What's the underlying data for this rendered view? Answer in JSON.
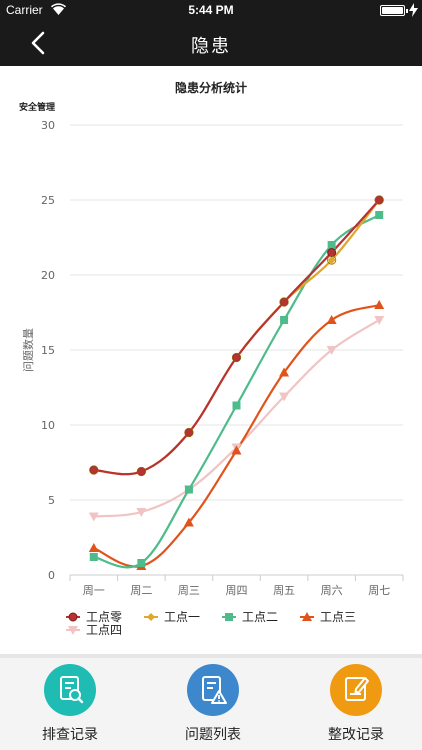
{
  "status_bar": {
    "carrier": "Carrier",
    "time": "5:44 PM"
  },
  "nav": {
    "title": "隐患"
  },
  "chart_data": {
    "type": "line",
    "title": "隐患分析统计",
    "subtitle": "安全管理",
    "ylabel": "问题数量",
    "xlabel": "",
    "categories": [
      "周一",
      "周二",
      "周三",
      "周四",
      "周五",
      "周六",
      "周七"
    ],
    "ylim": [
      0,
      30
    ],
    "yticks": [
      0,
      5,
      10,
      15,
      20,
      25,
      30
    ],
    "grid": true,
    "legend_position": "bottom",
    "series": [
      {
        "name": "工点零",
        "color": "#b83232",
        "marker": "circle",
        "values": [
          7,
          6.9,
          9.5,
          14.5,
          18.2,
          21.5,
          25
        ]
      },
      {
        "name": "工点一",
        "color": "#e0a82a",
        "marker": "diamond",
        "values": [
          7,
          6.9,
          9.5,
          14.5,
          18.2,
          21,
          25
        ]
      },
      {
        "name": "工点二",
        "color": "#4dbb8a",
        "marker": "square",
        "values": [
          1.2,
          0.8,
          5.7,
          11.3,
          17,
          22,
          24
        ]
      },
      {
        "name": "工点三",
        "color": "#e0541c",
        "marker": "triangle",
        "values": [
          1.8,
          0.6,
          3.5,
          8.3,
          13.5,
          17,
          18
        ]
      },
      {
        "name": "工点四",
        "color": "#f0c4c4",
        "marker": "triangle-down",
        "values": [
          3.9,
          4.2,
          5.7,
          8.5,
          11.9,
          15,
          17
        ]
      }
    ]
  },
  "tabs": [
    {
      "label": "排查记录",
      "icon": "doc-search-icon",
      "color": "#1fbcb4"
    },
    {
      "label": "问题列表",
      "icon": "doc-warning-icon",
      "color": "#3d88cc"
    },
    {
      "label": "整改记录",
      "icon": "doc-edit-icon",
      "color": "#f09a12"
    }
  ]
}
